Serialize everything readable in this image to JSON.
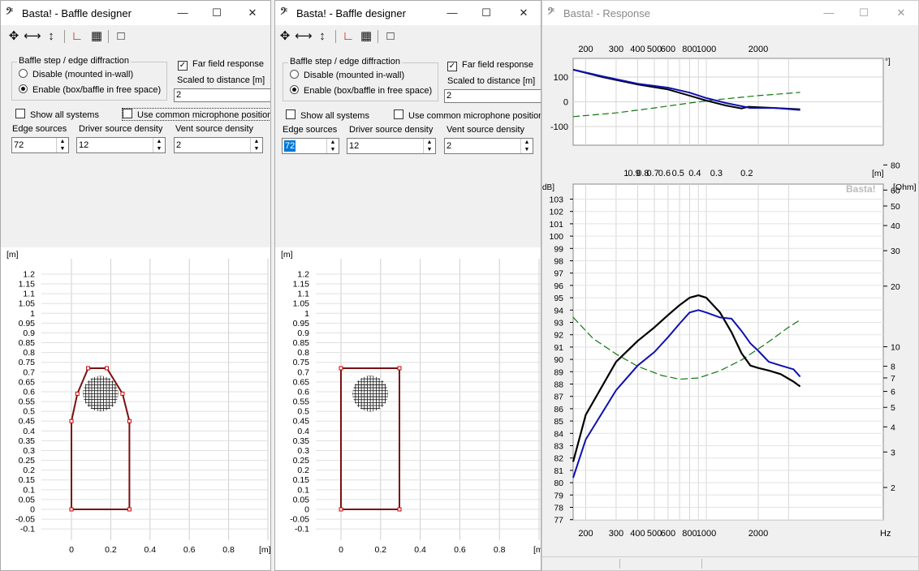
{
  "windows": [
    {
      "title": "Basta! - Baffle designer",
      "baffle_step_group": "Baffle step / edge diffraction",
      "radio_disable": "Disable (mounted in-wall)",
      "radio_enable": "Enable (box/baffle in free space)",
      "far_field": "Far field response",
      "far_field_checked": true,
      "scaled_label": "Scaled to distance [m]",
      "scaled_value": "2",
      "show_all": "Show all systems",
      "common_mic": "Use common microphone position",
      "edge_sources_label": "Edge sources",
      "edge_sources": "72",
      "driver_density_label": "Driver source density",
      "driver_density": "12",
      "vent_density_label": "Vent source density",
      "vent_density": "2",
      "shape": "tapered"
    },
    {
      "title": "Basta! - Baffle designer",
      "baffle_step_group": "Baffle step / edge diffraction",
      "radio_disable": "Disable (mounted in-wall)",
      "radio_enable": "Enable (box/baffle in free space)",
      "far_field": "Far field response",
      "far_field_checked": true,
      "scaled_label": "Scaled to distance [m]",
      "scaled_value": "2",
      "show_all": "Show all systems",
      "common_mic": "Use common microphone position",
      "edge_sources_label": "Edge sources",
      "edge_sources": "72",
      "driver_density_label": "Driver source density",
      "driver_density": "12",
      "vent_density_label": "Vent source density",
      "vent_density": "2",
      "shape": "rectangle"
    }
  ],
  "baffle_plot": {
    "y_unit": "[m]",
    "x_unit": "[m]",
    "y_ticks": [
      "1.2",
      "1.15",
      "1.1",
      "1.05",
      "1",
      "0.95",
      "0.9",
      "0.85",
      "0.8",
      "0.75",
      "0.7",
      "0.65",
      "0.6",
      "0.55",
      "0.5",
      "0.45",
      "0.4",
      "0.35",
      "0.3",
      "0.25",
      "0.2",
      "0.15",
      "0.1",
      "0.05",
      "0",
      "-0.05",
      "-0.1"
    ],
    "x_ticks": [
      "0",
      "0.2",
      "0.4",
      "0.6",
      "0.8"
    ]
  },
  "response": {
    "title": "Basta! - Response",
    "watermark": "Basta!",
    "top_freq_labels": [
      "200",
      "300",
      "400",
      "500",
      "600",
      "800",
      "1000",
      "2000"
    ],
    "phase_unit": "°]",
    "phase_ticks": [
      "100",
      "0",
      "-100"
    ],
    "wavelength_labels": [
      "1",
      "0.9",
      "0.8",
      "0.7",
      "0.6",
      "0.5",
      "0.4",
      "0.3",
      "0.2"
    ],
    "wavelength_unit": "[m]",
    "db_unit": "dB]",
    "db_ticks": [
      "103",
      "102",
      "101",
      "100",
      "99",
      "98",
      "97",
      "96",
      "95",
      "94",
      "93",
      "92",
      "91",
      "90",
      "89",
      "88",
      "87",
      "86",
      "85",
      "84",
      "83",
      "82",
      "81",
      "80",
      "79",
      "78",
      "77"
    ],
    "ohm_unit": "[Ohm]",
    "ohm_ticks": [
      "80",
      "60",
      "50",
      "40",
      "30",
      "20",
      "10",
      "8",
      "7",
      "6",
      "5",
      "4",
      "3",
      "2"
    ],
    "bottom_freq_labels": [
      "200",
      "300",
      "400",
      "500",
      "600",
      "800",
      "1000",
      "2000"
    ],
    "hz_unit": "Hz",
    "colors": {
      "spl_a": "#000000",
      "spl_b": "#1010b0",
      "impedance": "#117711"
    }
  }
}
